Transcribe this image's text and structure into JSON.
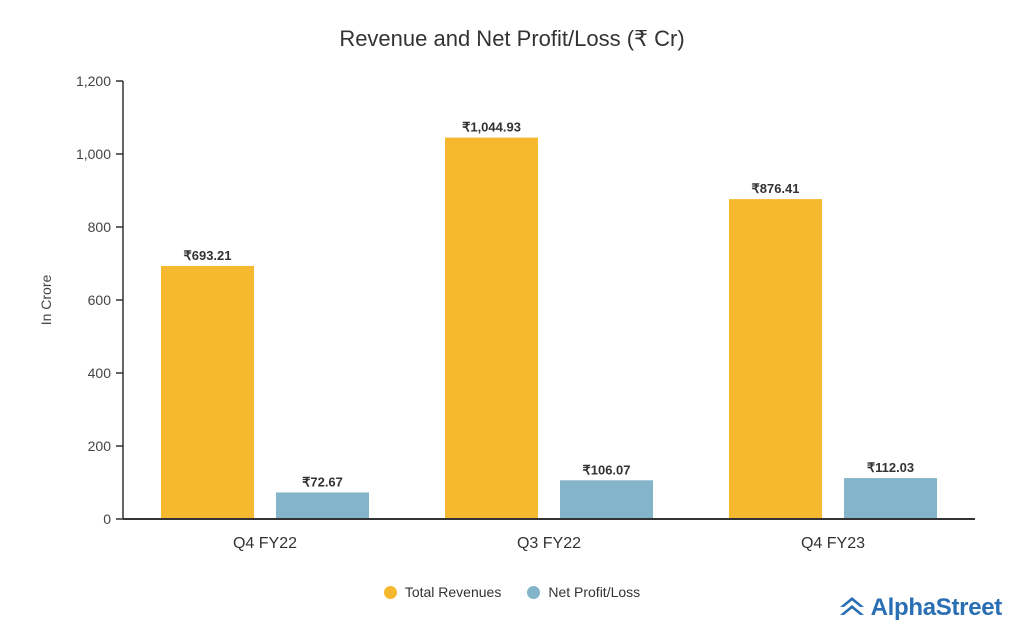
{
  "chart_data": {
    "type": "bar",
    "title": "Revenue and Net Profit/Loss (₹ Cr)",
    "xlabel": "",
    "ylabel": "In Crore",
    "ylim": [
      0,
      1200
    ],
    "yticks": [
      "0",
      "200",
      "400",
      "600",
      "800",
      "1,000",
      "1,200"
    ],
    "categories": [
      "Q4 FY22",
      "Q3 FY22",
      "Q4 FY23"
    ],
    "series": [
      {
        "name": "Total Revenues",
        "color": "#f5b82e",
        "values": [
          693.21,
          1044.93,
          876.41
        ],
        "labels": [
          "₹693.21",
          "₹1,044.93",
          "₹876.41"
        ]
      },
      {
        "name": "Net Profit/Loss",
        "color": "#84b4c9",
        "values": [
          72.67,
          106.07,
          112.03
        ],
        "labels": [
          "₹72.67",
          "₹106.07",
          "₹112.03"
        ]
      }
    ],
    "grid": false,
    "legend_position": "bottom"
  },
  "branding": {
    "logo_text": "AlphaStreet",
    "logo_color": "#2a6fb3"
  }
}
